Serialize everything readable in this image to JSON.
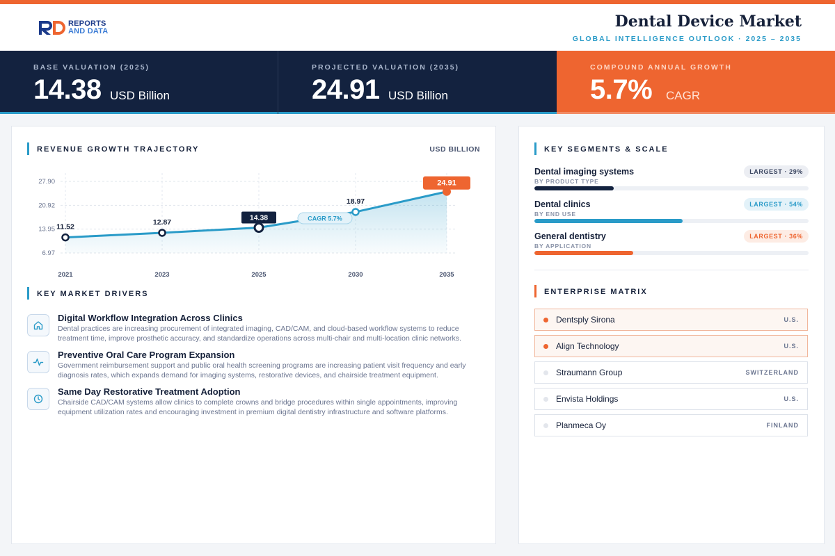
{
  "brand": {
    "line1": "REPORTS",
    "line2": "AND DATA"
  },
  "header": {
    "title": "Dental Device Market",
    "subtitle": "GLOBAL INTELLIGENCE OUTLOOK  ·  2025 – 2035"
  },
  "kpis": [
    {
      "label": "BASE VALUATION (2025)",
      "value": "14.38",
      "unit": "USD Billion"
    },
    {
      "label": "PROJECTED VALUATION (2035)",
      "value": "24.91",
      "unit": "USD Billion"
    },
    {
      "label": "COMPOUND ANNUAL GROWTH",
      "value": "5.7%",
      "unit": "CAGR"
    }
  ],
  "trajectory": {
    "title": "REVENUE GROWTH TRAJECTORY",
    "units": "USD BILLION"
  },
  "chart_data": {
    "type": "area",
    "x": [
      "2021",
      "2023",
      "2025",
      "2030",
      "2035"
    ],
    "values": [
      11.52,
      12.87,
      14.38,
      18.97,
      24.91
    ],
    "point_labels": [
      "11.52",
      "12.87",
      "14.38",
      "18.97",
      "24.91"
    ],
    "yticks": [
      "27.90",
      "20.92",
      "13.95",
      "6.97"
    ],
    "ytick_values": [
      27.9,
      20.92,
      13.95,
      6.97
    ],
    "ylim": [
      6.97,
      27.9
    ],
    "annotation": "CAGR 5.7%",
    "highlight": {
      "base_index": 2,
      "projected_index": 4
    },
    "colors": {
      "line": "#2a9bc8",
      "projected": "#ee6530",
      "base": "#13223f"
    },
    "grid": true
  },
  "drivers": {
    "title": "KEY MARKET DRIVERS",
    "items": [
      {
        "icon": "home-icon",
        "title": "Digital Workflow Integration Across Clinics",
        "desc": "Dental practices are increasing procurement of integrated imaging, CAD/CAM, and cloud-based workflow systems to reduce treatment time, improve prosthetic accuracy, and standardize operations across multi-chair and multi-location clinic networks."
      },
      {
        "icon": "pulse-icon",
        "title": "Preventive Oral Care Program Expansion",
        "desc": "Government reimbursement support and public oral health screening programs are increasing patient visit frequency and early diagnosis rates, which expands demand for imaging systems, restorative devices, and chairside treatment equipment."
      },
      {
        "icon": "clock-icon",
        "title": "Same Day Restorative Treatment Adoption",
        "desc": "Chairside CAD/CAM systems allow clinics to complete crowns and bridge procedures within single appointments, improving equipment utilization rates and encouraging investment in premium digital dentistry infrastructure and software platforms."
      }
    ]
  },
  "segments": {
    "title": "KEY SEGMENTS & SCALE",
    "items": [
      {
        "name": "Dental imaging systems",
        "sub": "BY PRODUCT TYPE",
        "badge": "LARGEST · 29%",
        "share": 0.29,
        "color": "#13223f",
        "badge_bg": "#eceef3",
        "badge_fg": "#3a4560"
      },
      {
        "name": "Dental clinics",
        "sub": "BY END USE",
        "badge": "LARGEST · 54%",
        "share": 0.54,
        "color": "#2a9bc8",
        "badge_bg": "#e3f2f9",
        "badge_fg": "#2a9bc8"
      },
      {
        "name": "General dentistry",
        "sub": "BY APPLICATION",
        "badge": "LARGEST · 36%",
        "share": 0.36,
        "color": "#ee6530",
        "badge_bg": "#fdece4",
        "badge_fg": "#ee6530"
      }
    ]
  },
  "enterprise": {
    "title": "ENTERPRISE MATRIX",
    "items": [
      {
        "name": "Dentsply Sirona",
        "country": "U.S.",
        "highlight": true
      },
      {
        "name": "Align Technology",
        "country": "U.S.",
        "highlight": true
      },
      {
        "name": "Straumann Group",
        "country": "SWITZERLAND",
        "highlight": false
      },
      {
        "name": "Envista Holdings",
        "country": "U.S.",
        "highlight": false
      },
      {
        "name": "Planmeca Oy",
        "country": "FINLAND",
        "highlight": false
      }
    ]
  },
  "colors": {
    "accent": "#ee6530",
    "navy": "#13223f",
    "teal": "#2a9bc8"
  }
}
